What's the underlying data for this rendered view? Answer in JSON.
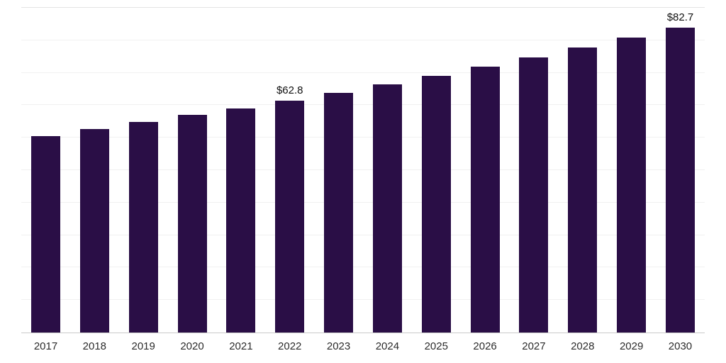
{
  "chart_data": {
    "type": "bar",
    "title": "",
    "xlabel": "",
    "ylabel": "",
    "categories": [
      "2017",
      "2018",
      "2019",
      "2020",
      "2021",
      "2022",
      "2023",
      "2024",
      "2025",
      "2026",
      "2027",
      "2028",
      "2029",
      "2030"
    ],
    "values": [
      53.2,
      55.1,
      57.0,
      58.9,
      60.8,
      62.8,
      65.0,
      67.2,
      69.6,
      72.0,
      74.6,
      77.2,
      79.9,
      82.7
    ],
    "annotations": [
      {
        "category": "2022",
        "text": "$62.8"
      },
      {
        "category": "2030",
        "text": "$82.7"
      }
    ],
    "ylim": [
      0,
      88
    ],
    "grid": true,
    "legend": "none",
    "bar_color": "#2a0e46",
    "gridline_color": "#f1f1f1",
    "axis_line_color": "#c9c9c9",
    "label_color": "#111111",
    "tick_color": "#2b2b2b"
  }
}
